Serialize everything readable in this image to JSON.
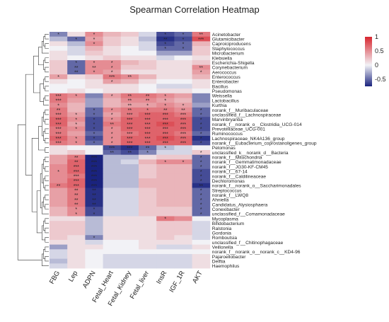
{
  "chart_data": {
    "type": "heatmap",
    "title": "Spearman Correlation Heatmap",
    "columns": [
      "FBG",
      "Lep",
      "ADPN",
      "Fetal_Heart",
      "Fetal_Kidney",
      "Fetal_liver",
      "InsR",
      "IGF_1R",
      "AKT"
    ],
    "rows": [
      "Acinetobacter",
      "Glutamicibacter",
      "Caproiciproducens",
      "Staphylococcus",
      "Microbacterium",
      "Klebsiella",
      "Escherichia-Shigella",
      "Corynebacterium",
      "Aerococcus",
      "Enterococcus",
      "Enterobacter",
      "Bacillus",
      "Pseudomonas",
      "Weissella",
      "Lactobacillus",
      "Kurthia",
      "norank_f__Muribaculaceae",
      "unclassified_f__Lachnospiraceae",
      "Marvinbryantia",
      "norank_f__norank_o__Clostridia_UCG-014",
      "Prevotellaceae_UCG-001",
      "Ruminococcus",
      "Lachnospiraceae_NK4A136_group",
      "norank_f__Eubacterium_coprostanoligenes_group",
      "Pelomonas",
      "unclassified_k__norank_d__Bacteria",
      "norank_f__Mitochondria",
      "norank_f__Gemmatimonadaceae",
      "norank_f__JG30-KF-CM45",
      "norank_f__67-14",
      "norank_f__Caldilineaceae",
      "Dechloromonas",
      "norank_f__norank_o__Saccharimonadales",
      "Streptococcus",
      "norank_f__LWQ8",
      "Ahniella",
      "Candidatus_Alysiosphaera",
      "Conexibacter",
      "unclassified_f__Comamonadaceae",
      "Mycoplasma",
      "Bifidobacterium",
      "Ralstonia",
      "Gordonia",
      "Romboutsia",
      "unclassified_f__Chitinophagaceae",
      "Veillonella",
      "norank_f__norank_o__norank_c__KD4-96",
      "Pajaroellobacter",
      "Delftia",
      "Haemophilus"
    ],
    "values": [
      [
        -0.4,
        0.1,
        0.5,
        0.3,
        0.2,
        -0.1,
        -0.6,
        -0.5,
        0.6
      ],
      [
        -0.2,
        -0.5,
        0.4,
        0.2,
        0.1,
        -0.2,
        -0.7,
        -0.6,
        0.8
      ],
      [
        0.1,
        -0.2,
        0.5,
        0.2,
        0.1,
        -0.1,
        -0.6,
        -0.5,
        0.3
      ],
      [
        0.0,
        -0.1,
        0.3,
        0.1,
        0.0,
        -0.1,
        -0.5,
        -0.5,
        0.2
      ],
      [
        0.1,
        -0.1,
        0.2,
        0.1,
        0.0,
        0.0,
        -0.3,
        -0.3,
        0.2
      ],
      [
        0.1,
        0.0,
        0.1,
        0.2,
        0.1,
        0.1,
        -0.1,
        0.0,
        0.1
      ],
      [
        0.2,
        -0.5,
        0.5,
        0.5,
        0.3,
        0.2,
        0.1,
        0.1,
        0.2
      ],
      [
        0.2,
        -0.5,
        0.5,
        0.5,
        0.2,
        0.2,
        0.1,
        0.1,
        0.5
      ],
      [
        0.2,
        -0.5,
        0.5,
        0.4,
        0.1,
        0.1,
        0.1,
        0.1,
        0.4
      ],
      [
        0.4,
        0.1,
        0.2,
        0.6,
        0.5,
        0.3,
        0.1,
        0.1,
        0.3
      ],
      [
        0.1,
        0.0,
        0.1,
        0.4,
        0.3,
        0.1,
        0.0,
        0.0,
        0.1
      ],
      [
        0.0,
        0.0,
        0.1,
        0.1,
        0.1,
        0.0,
        -0.1,
        -0.1,
        0.1
      ],
      [
        0.0,
        0.1,
        0.0,
        0.1,
        0.1,
        0.0,
        0.1,
        0.1,
        0.0
      ],
      [
        0.6,
        0.5,
        -0.4,
        0.4,
        0.6,
        0.6,
        0.5,
        0.4,
        -0.4
      ],
      [
        0.6,
        0.4,
        -0.3,
        0.3,
        0.5,
        0.5,
        0.4,
        0.3,
        -0.4
      ],
      [
        0.5,
        0.3,
        -0.3,
        0.3,
        0.4,
        0.4,
        0.5,
        0.4,
        -0.3
      ],
      [
        0.6,
        0.3,
        -0.5,
        0.5,
        0.6,
        0.6,
        0.6,
        0.5,
        -0.5
      ],
      [
        0.6,
        0.4,
        -0.5,
        0.4,
        0.6,
        0.7,
        0.7,
        0.6,
        -0.5
      ],
      [
        0.7,
        0.5,
        -0.6,
        0.5,
        0.7,
        0.7,
        0.7,
        0.7,
        -0.6
      ],
      [
        0.7,
        0.4,
        -0.6,
        0.6,
        0.7,
        0.7,
        0.8,
        0.7,
        -0.6
      ],
      [
        0.6,
        0.5,
        -0.6,
        0.5,
        0.7,
        0.7,
        0.7,
        0.7,
        -0.6
      ],
      [
        0.6,
        0.4,
        -0.5,
        0.5,
        0.6,
        0.7,
        0.7,
        0.6,
        -0.5
      ],
      [
        0.7,
        0.5,
        -0.6,
        0.5,
        0.7,
        0.7,
        0.8,
        0.7,
        -0.7
      ],
      [
        0.6,
        0.5,
        -0.5,
        0.5,
        0.7,
        0.7,
        0.7,
        0.7,
        -0.6
      ],
      [
        0.1,
        0.0,
        0.0,
        -0.6,
        -0.7,
        -0.5,
        -0.2,
        -0.1,
        0.0
      ],
      [
        0.1,
        0.2,
        0.0,
        -0.5,
        -0.6,
        -0.4,
        -0.1,
        -0.1,
        0.2
      ],
      [
        0.4,
        0.6,
        -0.8,
        -0.2,
        -0.2,
        0.1,
        0.2,
        0.2,
        -0.5
      ],
      [
        0.4,
        0.7,
        -0.8,
        -0.2,
        -0.1,
        0.3,
        0.5,
        0.5,
        -0.5
      ],
      [
        0.5,
        0.7,
        -0.8,
        -0.2,
        -0.2,
        0.2,
        0.3,
        0.3,
        -0.5
      ],
      [
        0.5,
        0.7,
        -0.8,
        -0.2,
        -0.2,
        0.2,
        0.3,
        0.3,
        -0.6
      ],
      [
        0.5,
        0.6,
        -0.8,
        -0.2,
        -0.2,
        0.2,
        0.3,
        0.3,
        -0.6
      ],
      [
        0.5,
        0.7,
        -0.8,
        -0.2,
        -0.2,
        0.3,
        0.3,
        0.3,
        -0.6
      ],
      [
        0.6,
        0.7,
        -0.8,
        -0.2,
        -0.2,
        0.3,
        0.3,
        0.3,
        -0.7
      ],
      [
        0.4,
        0.6,
        -0.7,
        -0.1,
        -0.1,
        0.2,
        0.3,
        0.3,
        -0.5
      ],
      [
        0.4,
        0.6,
        -0.7,
        -0.1,
        -0.1,
        0.2,
        0.3,
        0.3,
        -0.5
      ],
      [
        0.4,
        0.6,
        -0.7,
        -0.1,
        -0.1,
        0.2,
        0.3,
        0.3,
        -0.5
      ],
      [
        0.4,
        0.6,
        -0.7,
        -0.1,
        -0.1,
        0.2,
        0.3,
        0.3,
        -0.5
      ],
      [
        0.3,
        0.5,
        -0.6,
        -0.1,
        -0.1,
        0.2,
        0.2,
        0.2,
        -0.5
      ],
      [
        0.3,
        0.5,
        -0.6,
        -0.1,
        -0.1,
        0.2,
        0.2,
        0.2,
        -0.5
      ],
      [
        0.1,
        0.1,
        -0.2,
        0.1,
        0.1,
        0.1,
        0.6,
        0.5,
        0.0
      ],
      [
        0.2,
        0.2,
        -0.2,
        0.1,
        0.1,
        0.1,
        0.2,
        0.2,
        -0.1
      ],
      [
        0.2,
        0.2,
        -0.2,
        0.1,
        0.1,
        0.1,
        0.2,
        0.2,
        -0.1
      ],
      [
        0.2,
        0.2,
        -0.2,
        0.1,
        0.1,
        0.1,
        0.2,
        0.2,
        -0.1
      ],
      [
        0.2,
        0.1,
        -0.4,
        0.1,
        0.1,
        0.1,
        0.2,
        0.1,
        -0.1
      ],
      [
        0.1,
        0.1,
        -0.1,
        0.0,
        0.0,
        0.1,
        0.1,
        0.1,
        0.0
      ],
      [
        -0.3,
        0.1,
        0.1,
        0.0,
        0.0,
        0.1,
        -0.1,
        -0.1,
        0.1
      ],
      [
        -0.1,
        0.1,
        0.0,
        0.0,
        0.0,
        0.0,
        0.0,
        0.0,
        0.0
      ],
      [
        -0.1,
        0.1,
        0.0,
        -0.1,
        -0.1,
        -0.1,
        -0.1,
        -0.1,
        0.1
      ],
      [
        -0.2,
        0.1,
        0.0,
        -0.1,
        -0.1,
        -0.1,
        -0.1,
        -0.1,
        0.1
      ],
      [
        -0.1,
        0.1,
        0.0,
        -0.1,
        -0.1,
        -0.1,
        -0.1,
        -0.1,
        0.1
      ]
    ],
    "significance": [
      [
        "*",
        "",
        "*",
        "",
        "",
        "",
        "*",
        "*",
        "**"
      ],
      [
        "",
        "*",
        "*",
        "",
        "",
        "",
        "**",
        "*",
        "***"
      ],
      [
        "",
        "",
        "*",
        "",
        "",
        "",
        "*",
        "*",
        ""
      ],
      [
        "",
        "",
        "",
        "",
        "",
        "",
        "*",
        "*",
        ""
      ],
      [
        "",
        "",
        "",
        "",
        "",
        "",
        "",
        "",
        ""
      ],
      [
        "",
        "",
        "",
        "",
        "",
        "",
        "",
        "",
        ""
      ],
      [
        "",
        "*",
        "*",
        "*",
        "",
        "",
        "",
        "",
        ""
      ],
      [
        "",
        "**",
        "**",
        "*",
        "",
        "",
        "",
        "",
        "**"
      ],
      [
        "",
        "**",
        "*",
        "*",
        "",
        "",
        "",
        "",
        "*"
      ],
      [
        "*",
        "",
        "",
        "***",
        "**",
        "",
        "",
        "",
        ""
      ],
      [
        "",
        "",
        "",
        "*",
        "",
        "",
        "",
        "",
        ""
      ],
      [
        "",
        "",
        "",
        "",
        "",
        "",
        "",
        "",
        ""
      ],
      [
        "",
        "",
        "",
        "",
        "",
        "",
        "",
        "",
        ""
      ],
      [
        "***",
        "*",
        "",
        "*",
        "**",
        "**",
        "*",
        "",
        ""
      ],
      [
        "***",
        "",
        "",
        "",
        "**",
        "**",
        "*",
        "",
        ""
      ],
      [
        "*",
        "",
        "",
        "",
        "**",
        "*",
        "*",
        "*",
        ""
      ],
      [
        "**",
        "",
        "*",
        "*",
        "**",
        "*",
        "**",
        "**",
        "*"
      ],
      [
        "***",
        "*",
        "*",
        "*",
        "***",
        "***",
        "***",
        "***",
        "*"
      ],
      [
        "***",
        "*",
        "*",
        "*",
        "***",
        "***",
        "***",
        "***",
        "*"
      ],
      [
        "***",
        "*",
        "*",
        "**",
        "***",
        "***",
        "***",
        "***",
        "*"
      ],
      [
        "***",
        "*",
        "*",
        "*",
        "***",
        "***",
        "***",
        "***",
        "*"
      ],
      [
        "***",
        "",
        "*",
        "*",
        "***",
        "***",
        "***",
        "***",
        "*"
      ],
      [
        "***",
        "*",
        "*",
        "*",
        "***",
        "***",
        "***",
        "***",
        "*"
      ],
      [
        "***",
        "*",
        "*",
        "*",
        "***",
        "***",
        "***",
        "***",
        "*"
      ],
      [
        "",
        "",
        "",
        "***",
        "***",
        "**",
        "*",
        "",
        ""
      ],
      [
        "",
        "",
        "",
        "**",
        "**",
        "*",
        "",
        "",
        "*"
      ],
      [
        "",
        "**",
        "***",
        "",
        "",
        "",
        "",
        "",
        "*"
      ],
      [
        "",
        "**",
        "***",
        "",
        "",
        "",
        "*",
        "*",
        "*"
      ],
      [
        "",
        "***",
        "***",
        "",
        "",
        "",
        "",
        "",
        "*"
      ],
      [
        "*",
        "***",
        "***",
        "",
        "",
        "",
        "",
        "",
        "*"
      ],
      [
        "",
        "***",
        "***",
        "",
        "",
        "",
        "",
        "",
        "*"
      ],
      [
        "",
        "***",
        "***",
        "",
        "",
        "",
        "",
        "",
        "*"
      ],
      [
        "**",
        "***",
        "***",
        "",
        "",
        "",
        "",
        "",
        "**"
      ],
      [
        "",
        "**",
        "**",
        "",
        "",
        "",
        "",
        "",
        "*"
      ],
      [
        "",
        "**",
        "**",
        "",
        "",
        "",
        "",
        "",
        "*"
      ],
      [
        "",
        "**",
        "**",
        "",
        "",
        "",
        "",
        "",
        "*"
      ],
      [
        "",
        "**",
        "**",
        "",
        "",
        "",
        "",
        "",
        "*"
      ],
      [
        "",
        "*",
        "*",
        "",
        "",
        "",
        "",
        "",
        "*"
      ],
      [
        "",
        "*",
        "*",
        "",
        "",
        "",
        "",
        "",
        "*"
      ],
      [
        "",
        "",
        "",
        "",
        "",
        "",
        "*",
        "",
        ""
      ],
      [
        "",
        "",
        "",
        "",
        "",
        "",
        "",
        "",
        ""
      ],
      [
        "",
        "",
        "",
        "",
        "",
        "",
        "",
        "",
        ""
      ],
      [
        "",
        "",
        "",
        "",
        "",
        "",
        "",
        "",
        ""
      ],
      [
        "",
        "",
        "*",
        "",
        "",
        "",
        "",
        "",
        ""
      ],
      [
        "",
        "",
        "",
        "",
        "",
        "",
        "",
        "",
        ""
      ],
      [
        "",
        "",
        "",
        "",
        "",
        "",
        "",
        "",
        ""
      ],
      [
        "",
        "",
        "",
        "",
        "",
        "",
        "",
        "",
        ""
      ],
      [
        "",
        "",
        "",
        "",
        "",
        "",
        "",
        "",
        ""
      ],
      [
        "",
        "",
        "",
        "",
        "",
        "",
        "",
        "",
        ""
      ],
      [
        "",
        "",
        "",
        "",
        "",
        "",
        "",
        "",
        ""
      ]
    ],
    "legend": {
      "ticks": [
        "1",
        "0.5",
        "0",
        "-0.5"
      ],
      "range": [
        -0.75,
        1
      ],
      "placement": "top-right",
      "colors": {
        "high": "#d7262f",
        "mid": "#f2f2f6",
        "low": "#1a237e"
      }
    },
    "dendrogram": "left"
  }
}
